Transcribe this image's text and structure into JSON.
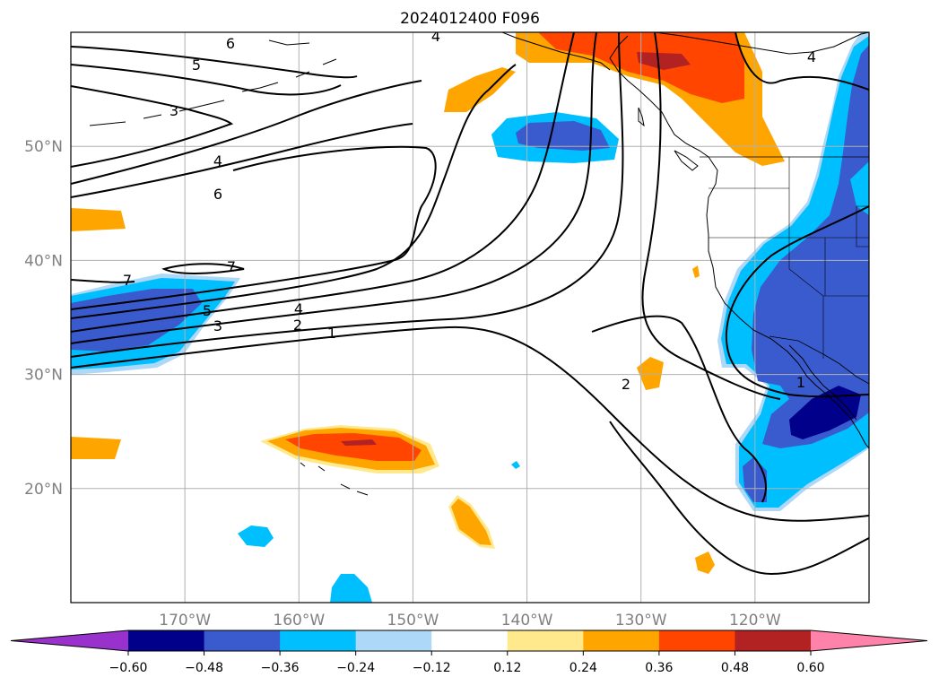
{
  "title": "2024012400 F096",
  "map": {
    "lon_range": [
      -180,
      -110
    ],
    "lat_range": [
      10,
      60
    ],
    "lon_ticks": [
      {
        "value": -170,
        "label": "170°W"
      },
      {
        "value": -160,
        "label": "160°W"
      },
      {
        "value": -150,
        "label": "150°W"
      },
      {
        "value": -140,
        "label": "140°W"
      },
      {
        "value": -130,
        "label": "130°W"
      },
      {
        "value": -120,
        "label": "120°W"
      }
    ],
    "lat_ticks": [
      {
        "value": 20,
        "label": "20°N"
      },
      {
        "value": 30,
        "label": "30°N"
      },
      {
        "value": 40,
        "label": "40°N"
      },
      {
        "value": 50,
        "label": "50°N"
      }
    ],
    "grid": true
  },
  "colorbar": {
    "colors": [
      "#9932cc",
      "#00008b",
      "#3a5bcd",
      "#00bfff",
      "#add8f8",
      "#ffffff",
      "#ffe98c",
      "#ffa500",
      "#ff4500",
      "#b22222",
      "#ff82ab"
    ],
    "labels": [
      "−0.60",
      "−0.48",
      "−0.36",
      "−0.24",
      "−0.12",
      "0.12",
      "0.24",
      "0.36",
      "0.48",
      "0.60"
    ],
    "extend": "both"
  },
  "contour_labels": [
    "6",
    "5",
    "3",
    "4",
    "6",
    "7",
    "7",
    "5",
    "4",
    "3",
    "2",
    "1",
    "2",
    "1",
    "4",
    "4"
  ]
}
